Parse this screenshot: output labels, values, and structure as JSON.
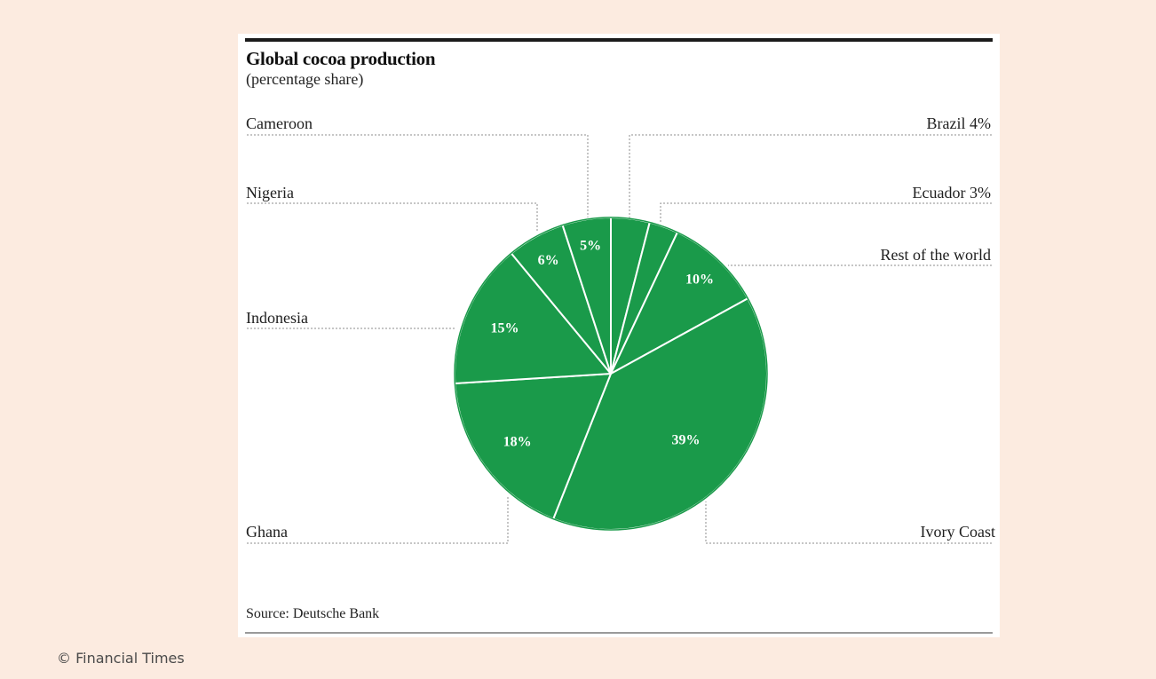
{
  "source": "Source: Deutsche Bank",
  "copyright": "© Financial Times",
  "colors": {
    "slice": "#1a9a4a",
    "slice_border": "#ffffff",
    "background": "#fcebe0"
  },
  "chart_data": {
    "type": "pie",
    "title": "Global cocoa production",
    "subtitle": "(percentage share)",
    "slices": [
      {
        "label": "Brazil",
        "value": 4,
        "label_text": "Brazil  4%"
      },
      {
        "label": "Ecuador",
        "value": 3,
        "label_text": "Ecuador 3%"
      },
      {
        "label": "Rest of the world",
        "value": 10,
        "label_text": "Rest of the world",
        "pct_text": "10%"
      },
      {
        "label": "Ivory Coast",
        "value": 39,
        "label_text": "Ivory Coast",
        "pct_text": "39%"
      },
      {
        "label": "Ghana",
        "value": 18,
        "label_text": "Ghana",
        "pct_text": "18%"
      },
      {
        "label": "Indonesia",
        "value": 15,
        "label_text": "Indonesia",
        "pct_text": "15%"
      },
      {
        "label": "Nigeria",
        "value": 6,
        "label_text": "Nigeria",
        "pct_text": "6%"
      },
      {
        "label": "Cameroon",
        "value": 5,
        "label_text": "Cameroon",
        "pct_text": "5%"
      }
    ],
    "start": "12 o'clock",
    "direction": "clockwise"
  }
}
